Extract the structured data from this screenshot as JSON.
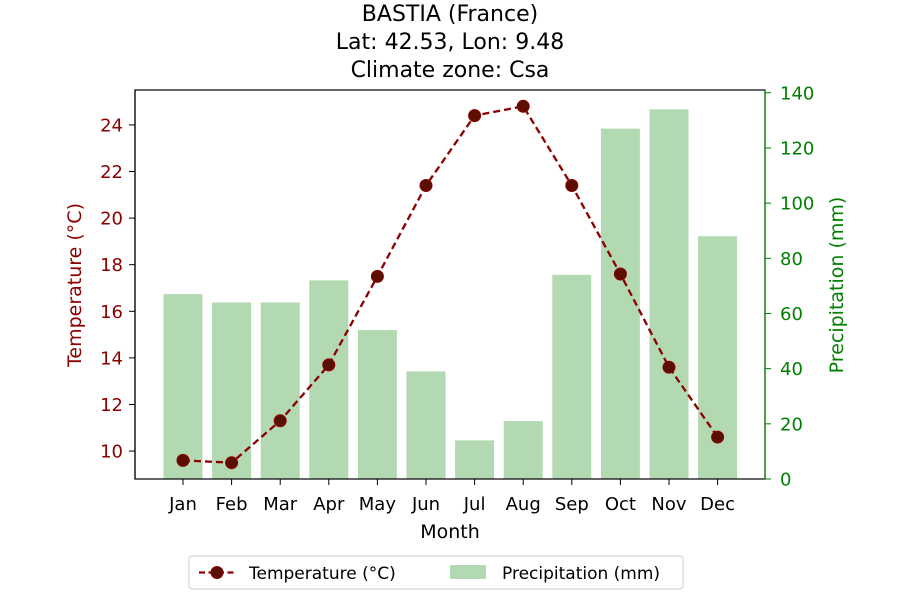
{
  "chart_data": {
    "type": "bar+line",
    "title_lines": [
      "BASTIA (France)",
      "Lat: 42.53, Lon: 9.48",
      "Climate zone: Csa"
    ],
    "xlabel": "Month",
    "ylabel_left": "Temperature (°C)",
    "ylabel_right": "Precipitation (mm)",
    "categories": [
      "Jan",
      "Feb",
      "Mar",
      "Apr",
      "May",
      "Jun",
      "Jul",
      "Aug",
      "Sep",
      "Oct",
      "Nov",
      "Dec"
    ],
    "y_left_ticks": [
      "10",
      "12",
      "14",
      "16",
      "18",
      "20",
      "22",
      "24"
    ],
    "y_right_ticks": [
      "0",
      "20",
      "40",
      "60",
      "80",
      "100",
      "120",
      "140"
    ],
    "y_left_range": [
      8.8,
      25.5
    ],
    "y_right_range": [
      0,
      141
    ],
    "series": [
      {
        "name": "Temperature (°C)",
        "kind": "line",
        "axis": "left",
        "color": "#8b0000",
        "line_style": "dashed",
        "marker": "circle",
        "values": [
          9.6,
          9.5,
          11.3,
          13.7,
          17.5,
          21.4,
          24.4,
          24.8,
          21.4,
          17.6,
          13.6,
          10.6
        ]
      },
      {
        "name": "Precipitation (mm)",
        "kind": "bar",
        "axis": "right",
        "color": "#b2d9b2",
        "values": [
          67,
          64,
          64,
          72,
          54,
          39,
          14,
          21,
          74,
          127,
          134,
          88
        ]
      }
    ],
    "legend_position": "bottom-center",
    "grid": false,
    "colors": {
      "left_axis": "#8b0000",
      "right_axis": "#008000",
      "marker_fill": "#5a0f00"
    }
  }
}
